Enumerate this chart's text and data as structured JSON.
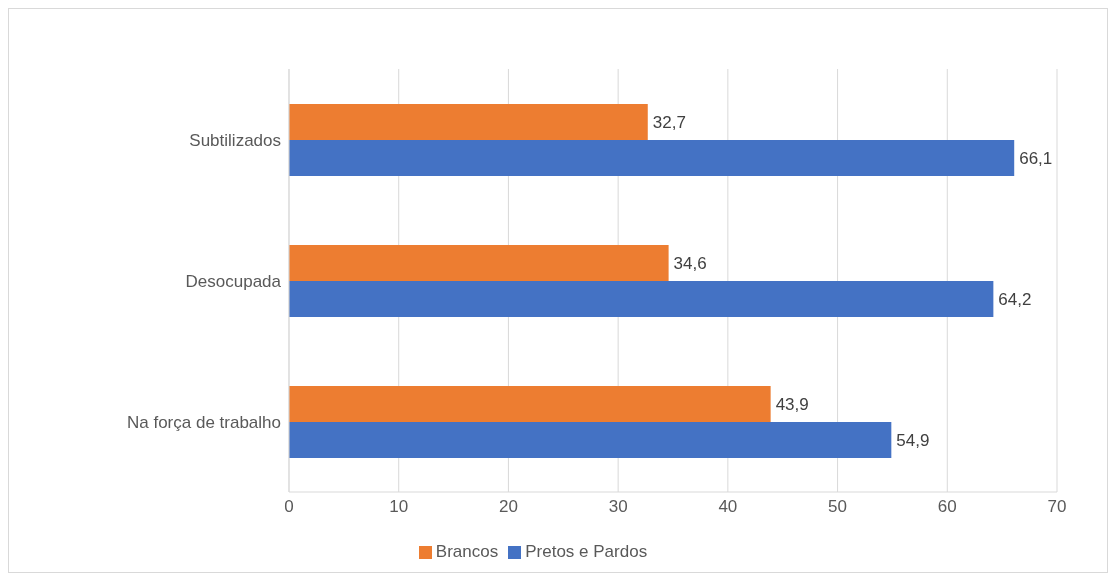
{
  "chart_data": {
    "type": "bar",
    "orientation": "horizontal",
    "categories": [
      "Subtilizados",
      "Desocupada",
      "Na força de trabalho"
    ],
    "series": [
      {
        "name": "Brancos",
        "color": "#ed7d31",
        "values": [
          32.7,
          34.6,
          43.9
        ],
        "value_labels": [
          "32,7",
          "34,6",
          "43,9"
        ]
      },
      {
        "name": "Pretos e Pardos",
        "color": "#4472c4",
        "values": [
          66.1,
          64.2,
          54.9
        ],
        "value_labels": [
          "66,1",
          "64,2",
          "54,9"
        ]
      }
    ],
    "xlim": [
      0,
      70
    ],
    "xticks": [
      0,
      10,
      20,
      30,
      40,
      50,
      60,
      70
    ],
    "grid": "x",
    "legend": "bottom"
  }
}
